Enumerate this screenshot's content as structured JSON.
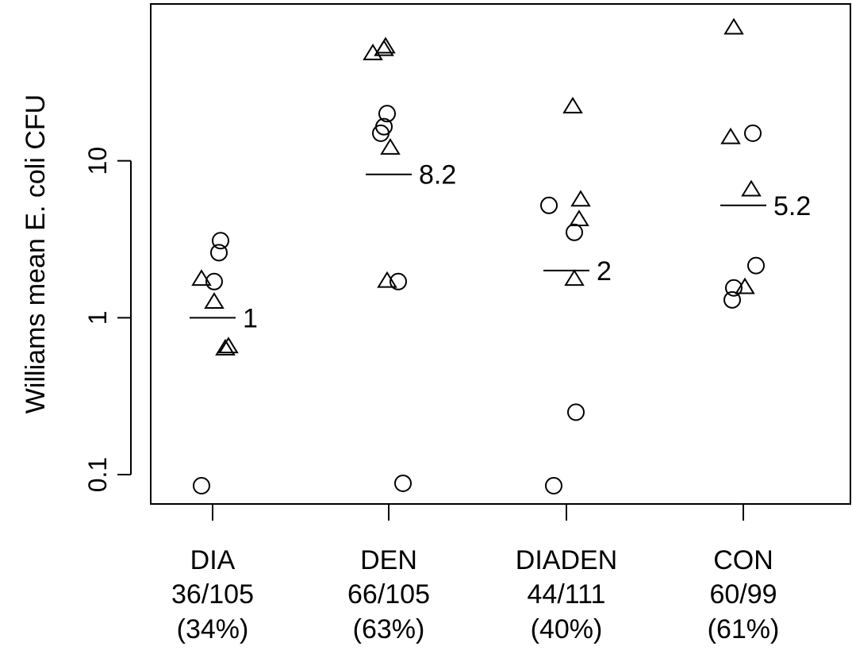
{
  "chart_data": {
    "type": "scatter",
    "title": "",
    "xlabel": "",
    "ylabel": "Williams mean E. coli CFU",
    "yscale": "log",
    "ylim": [
      0.065,
      100
    ],
    "yticks": [
      {
        "value": 0.1,
        "label": "0.1"
      },
      {
        "value": 1,
        "label": "1"
      },
      {
        "value": 10,
        "label": "10"
      }
    ],
    "grid": false,
    "legend": "none",
    "categories": [
      {
        "name": "DIA",
        "count": "36/105",
        "percent": "(34%)",
        "median": 1,
        "median_label": "1"
      },
      {
        "name": "DEN",
        "count": "66/105",
        "percent": "(63%)",
        "median": 8.2,
        "median_label": "8.2"
      },
      {
        "name": "DIADEN",
        "count": "44/111",
        "percent": "(40%)",
        "median": 2,
        "median_label": "2"
      },
      {
        "name": "CON",
        "count": "60/99",
        "percent": "(61%)",
        "median": 5.2,
        "median_label": "5.2"
      }
    ],
    "series": [
      {
        "marker": "circle",
        "points": [
          {
            "category": "DIA",
            "y": 0.085
          },
          {
            "category": "DIA",
            "y": 1.7
          },
          {
            "category": "DIA",
            "y": 2.6
          },
          {
            "category": "DIA",
            "y": 3.1
          },
          {
            "category": "DEN",
            "y": 0.088
          },
          {
            "category": "DEN",
            "y": 1.7
          },
          {
            "category": "DEN",
            "y": 15
          },
          {
            "category": "DEN",
            "y": 16.5
          },
          {
            "category": "DEN",
            "y": 20
          },
          {
            "category": "DIADEN",
            "y": 0.085
          },
          {
            "category": "DIADEN",
            "y": 0.25
          },
          {
            "category": "DIADEN",
            "y": 3.5
          },
          {
            "category": "DIADEN",
            "y": 5.2
          },
          {
            "category": "CON",
            "y": 1.3
          },
          {
            "category": "CON",
            "y": 1.55
          },
          {
            "category": "CON",
            "y": 2.15
          },
          {
            "category": "CON",
            "y": 15
          }
        ]
      },
      {
        "marker": "triangle",
        "points": [
          {
            "category": "DIA",
            "y": 0.63
          },
          {
            "category": "DIA",
            "y": 0.65
          },
          {
            "category": "DIA",
            "y": 1.25
          },
          {
            "category": "DIA",
            "y": 1.75
          },
          {
            "category": "DEN",
            "y": 1.7
          },
          {
            "category": "DEN",
            "y": 12
          },
          {
            "category": "DEN",
            "y": 48
          },
          {
            "category": "DEN",
            "y": 51
          },
          {
            "category": "DEN",
            "y": 53
          },
          {
            "category": "DIADEN",
            "y": 1.75
          },
          {
            "category": "DIADEN",
            "y": 4.2
          },
          {
            "category": "DIADEN",
            "y": 5.6
          },
          {
            "category": "DIADEN",
            "y": 22
          },
          {
            "category": "CON",
            "y": 1.55
          },
          {
            "category": "CON",
            "y": 6.5
          },
          {
            "category": "CON",
            "y": 14
          },
          {
            "category": "CON",
            "y": 70
          }
        ]
      }
    ]
  }
}
